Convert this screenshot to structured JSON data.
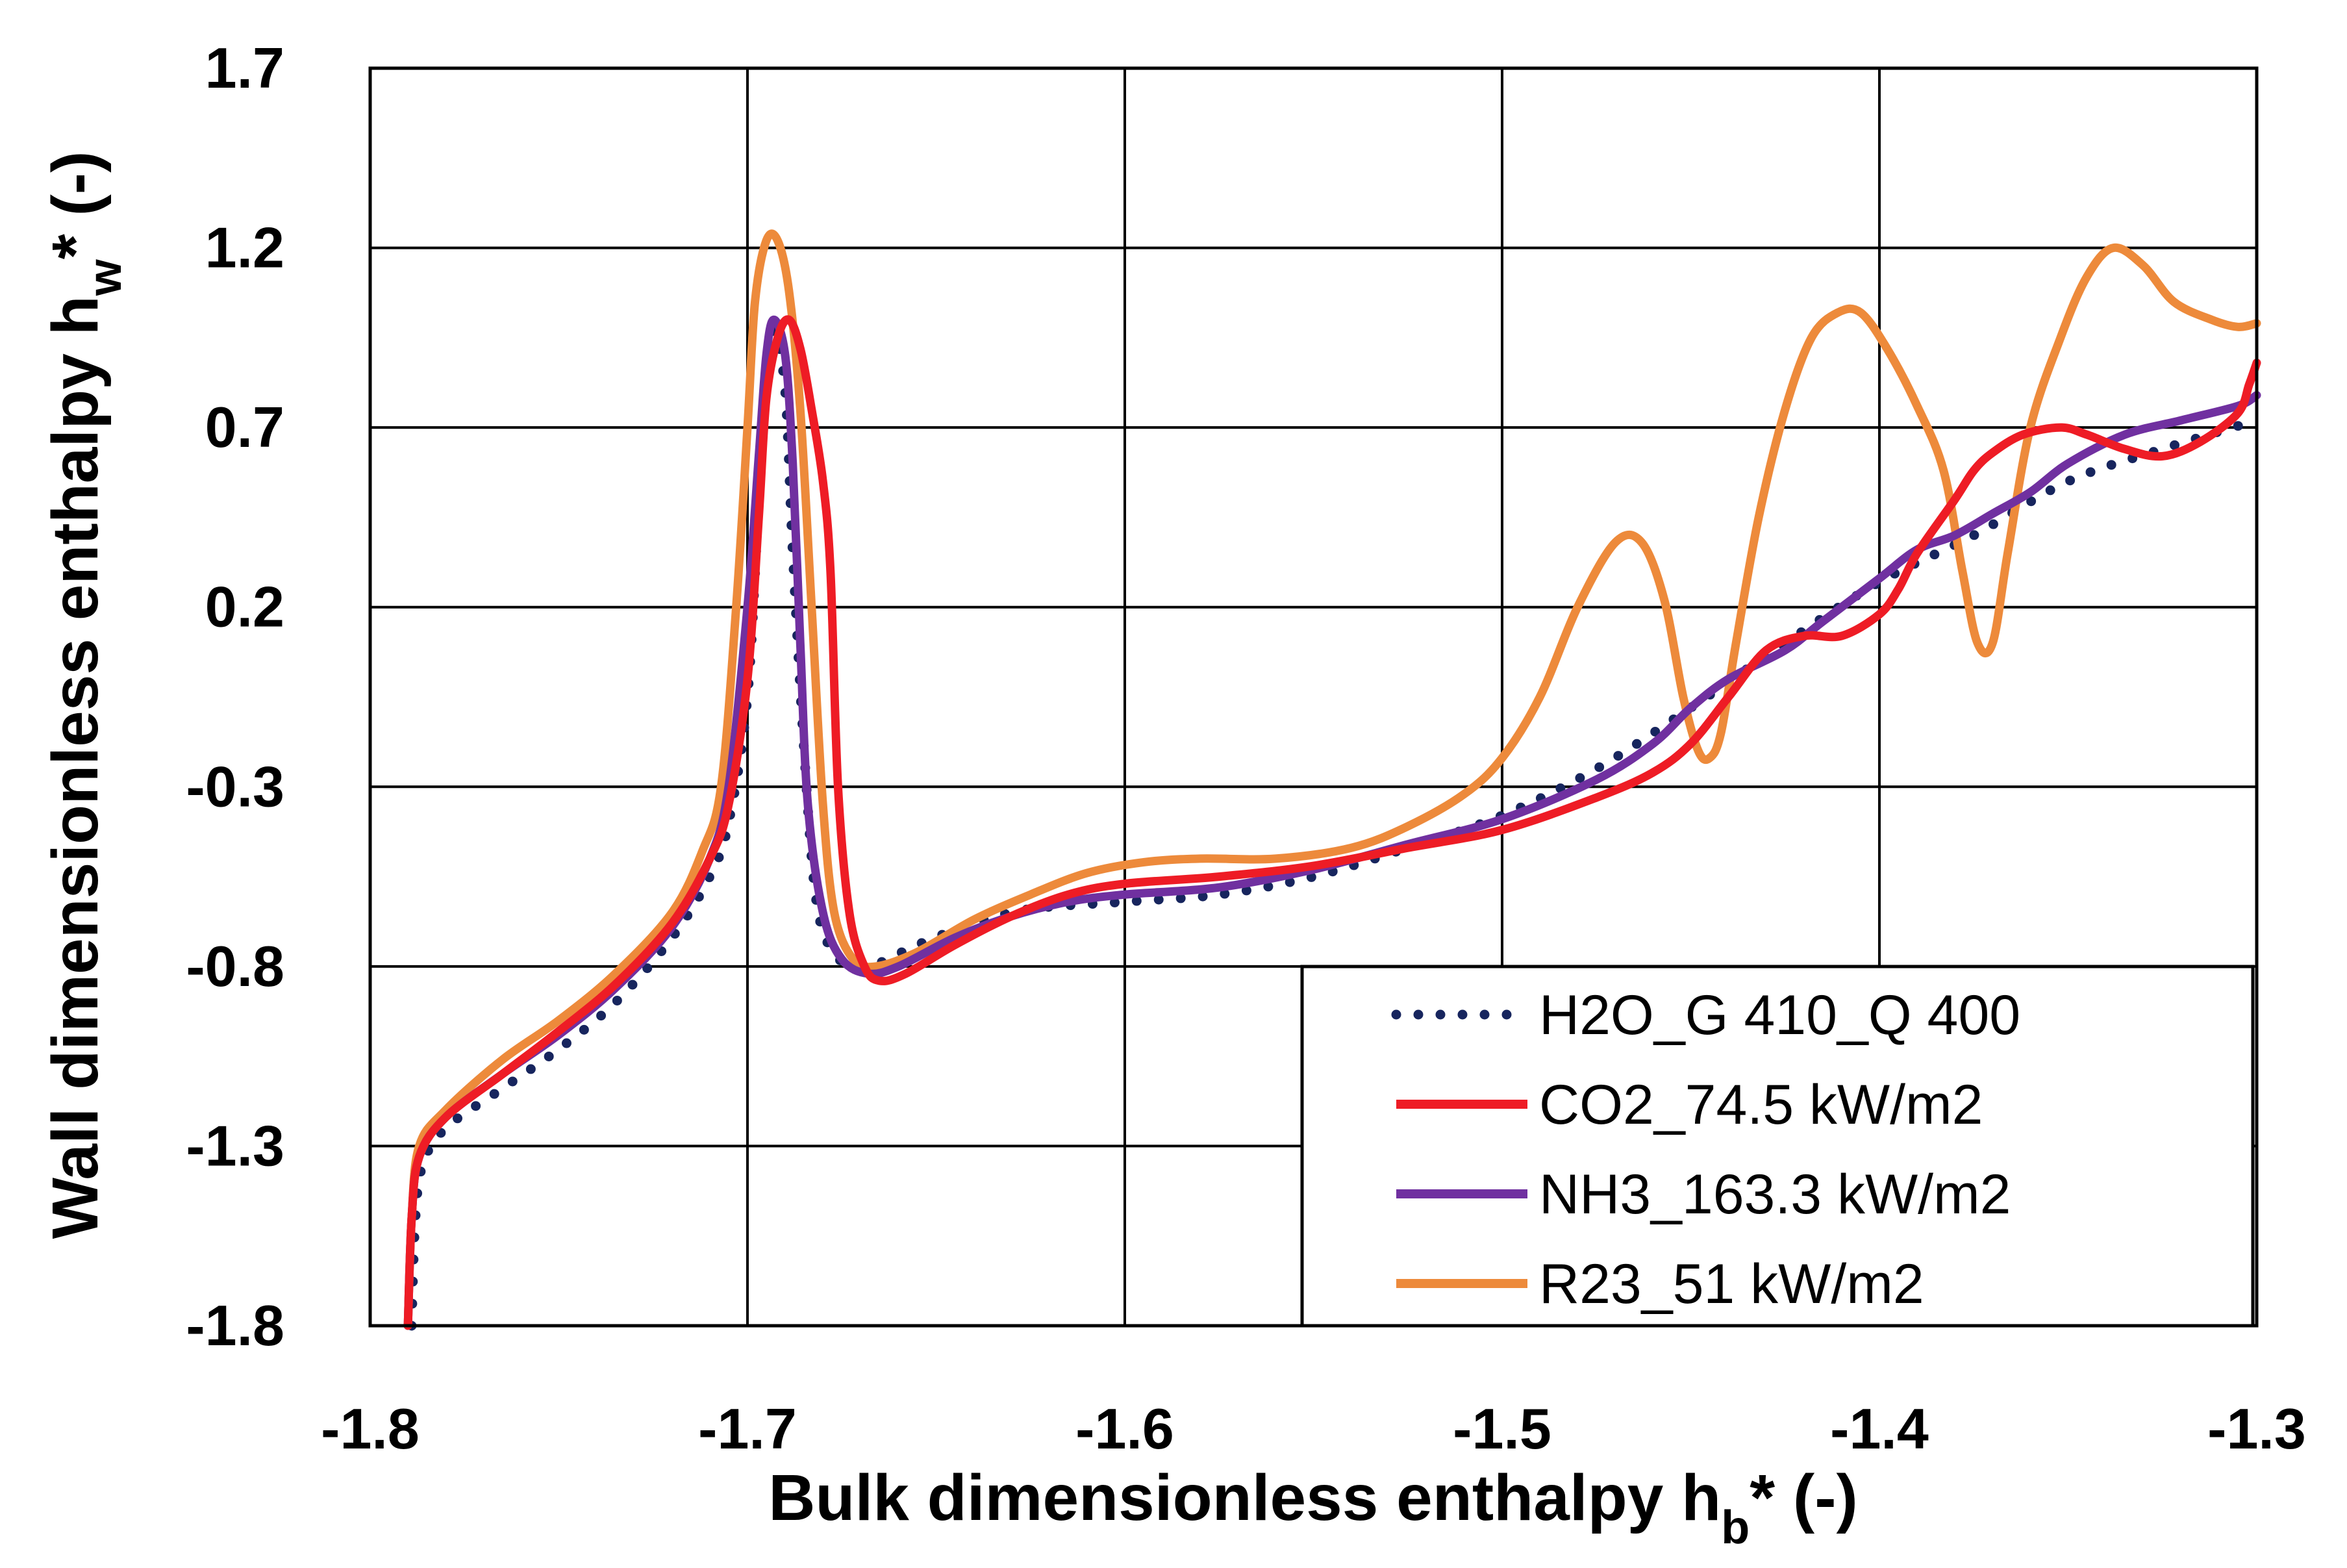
{
  "chart_data": {
    "type": "line",
    "title": "",
    "xlabel": "Bulk dimensionless enthalpy hb* (-)",
    "xlabel_parts": {
      "pre": "Bulk dimensionless enthalpy h",
      "sub": "b",
      "post": "* (-)"
    },
    "ylabel": "Wall dimensionless enthalpy hw* (-)",
    "ylabel_parts": {
      "pre": "Wall dimensionless enthalpy h",
      "sub": "w",
      "post": "* (-)"
    },
    "xlim": [
      -1.8,
      -1.3
    ],
    "ylim": [
      -1.8,
      1.7
    ],
    "xticks": [
      -1.8,
      -1.7,
      -1.6,
      -1.5,
      -1.4,
      -1.3
    ],
    "xtick_labels": [
      "-1.8",
      "-1.7",
      "-1.6",
      "-1.5",
      "-1.4",
      "-1.3"
    ],
    "yticks": [
      -1.8,
      -1.3,
      -0.8,
      -0.3,
      0.2,
      0.7,
      1.2,
      1.7
    ],
    "ytick_labels": [
      "-1.8",
      "-1.3",
      "-0.8",
      "-0.3",
      "0.2",
      "0.7",
      "1.2",
      "1.7"
    ],
    "grid": true,
    "legend_position": "bottom-right",
    "series": [
      {
        "name": "H2O_G 410_Q 400",
        "color": "#17255e",
        "style": "dotted",
        "points": [
          [
            -1.789,
            -1.8
          ],
          [
            -1.788,
            -1.5
          ],
          [
            -1.786,
            -1.35
          ],
          [
            -1.78,
            -1.25
          ],
          [
            -1.765,
            -1.14
          ],
          [
            -1.75,
            -1.03
          ],
          [
            -1.735,
            -0.9
          ],
          [
            -1.72,
            -0.72
          ],
          [
            -1.71,
            -0.55
          ],
          [
            -1.705,
            -0.4
          ],
          [
            -1.7,
            -0.05
          ],
          [
            -1.697,
            0.5
          ],
          [
            -1.695,
            0.85
          ],
          [
            -1.693,
            0.97
          ],
          [
            -1.69,
            0.8
          ],
          [
            -1.688,
            0.35
          ],
          [
            -1.685,
            -0.2
          ],
          [
            -1.682,
            -0.6
          ],
          [
            -1.678,
            -0.75
          ],
          [
            -1.672,
            -0.8
          ],
          [
            -1.665,
            -0.79
          ],
          [
            -1.655,
            -0.74
          ],
          [
            -1.64,
            -0.68
          ],
          [
            -1.625,
            -0.64
          ],
          [
            -1.6,
            -0.62
          ],
          [
            -1.575,
            -0.6
          ],
          [
            -1.55,
            -0.55
          ],
          [
            -1.525,
            -0.47
          ],
          [
            -1.5,
            -0.38
          ],
          [
            -1.475,
            -0.25
          ],
          [
            -1.45,
            -0.08
          ],
          [
            -1.425,
            0.1
          ],
          [
            -1.4,
            0.27
          ],
          [
            -1.375,
            0.4
          ],
          [
            -1.35,
            0.55
          ],
          [
            -1.325,
            0.64
          ],
          [
            -1.3,
            0.72
          ]
        ]
      },
      {
        "name": "CO2_74.5 kW/m2",
        "color": "#ee1c25",
        "style": "solid",
        "points": [
          [
            -1.79,
            -1.8
          ],
          [
            -1.789,
            -1.5
          ],
          [
            -1.787,
            -1.33
          ],
          [
            -1.78,
            -1.22
          ],
          [
            -1.765,
            -1.1
          ],
          [
            -1.75,
            -0.98
          ],
          [
            -1.735,
            -0.85
          ],
          [
            -1.72,
            -0.68
          ],
          [
            -1.71,
            -0.5
          ],
          [
            -1.705,
            -0.35
          ],
          [
            -1.7,
            0.0
          ],
          [
            -1.697,
            0.45
          ],
          [
            -1.695,
            0.78
          ],
          [
            -1.692,
            0.95
          ],
          [
            -1.689,
            1.0
          ],
          [
            -1.686,
            0.92
          ],
          [
            -1.683,
            0.75
          ],
          [
            -1.68,
            0.55
          ],
          [
            -1.678,
            0.3
          ],
          [
            -1.676,
            -0.3
          ],
          [
            -1.673,
            -0.65
          ],
          [
            -1.669,
            -0.8
          ],
          [
            -1.665,
            -0.84
          ],
          [
            -1.658,
            -0.82
          ],
          [
            -1.645,
            -0.74
          ],
          [
            -1.63,
            -0.66
          ],
          [
            -1.615,
            -0.6
          ],
          [
            -1.6,
            -0.57
          ],
          [
            -1.575,
            -0.55
          ],
          [
            -1.55,
            -0.52
          ],
          [
            -1.525,
            -0.47
          ],
          [
            -1.5,
            -0.42
          ],
          [
            -1.475,
            -0.33
          ],
          [
            -1.46,
            -0.26
          ],
          [
            -1.45,
            -0.18
          ],
          [
            -1.44,
            -0.05
          ],
          [
            -1.43,
            0.08
          ],
          [
            -1.42,
            0.12
          ],
          [
            -1.41,
            0.12
          ],
          [
            -1.4,
            0.18
          ],
          [
            -1.395,
            0.25
          ],
          [
            -1.39,
            0.35
          ],
          [
            -1.38,
            0.5
          ],
          [
            -1.375,
            0.58
          ],
          [
            -1.37,
            0.63
          ],
          [
            -1.362,
            0.68
          ],
          [
            -1.352,
            0.7
          ],
          [
            -1.345,
            0.68
          ],
          [
            -1.335,
            0.64
          ],
          [
            -1.325,
            0.62
          ],
          [
            -1.315,
            0.66
          ],
          [
            -1.305,
            0.74
          ],
          [
            -1.302,
            0.82
          ],
          [
            -1.3,
            0.88
          ]
        ]
      },
      {
        "name": "NH3_163.3 kW/m2",
        "color": "#7030a0",
        "style": "solid",
        "points": [
          [
            -1.79,
            -1.8
          ],
          [
            -1.789,
            -1.5
          ],
          [
            -1.787,
            -1.33
          ],
          [
            -1.78,
            -1.22
          ],
          [
            -1.765,
            -1.1
          ],
          [
            -1.75,
            -0.99
          ],
          [
            -1.735,
            -0.86
          ],
          [
            -1.72,
            -0.69
          ],
          [
            -1.71,
            -0.5
          ],
          [
            -1.705,
            -0.3
          ],
          [
            -1.7,
            0.2
          ],
          [
            -1.697,
            0.62
          ],
          [
            -1.695,
            0.9
          ],
          [
            -1.693,
            1.0
          ],
          [
            -1.69,
            0.9
          ],
          [
            -1.688,
            0.6
          ],
          [
            -1.686,
            0.1
          ],
          [
            -1.684,
            -0.35
          ],
          [
            -1.68,
            -0.65
          ],
          [
            -1.675,
            -0.78
          ],
          [
            -1.668,
            -0.82
          ],
          [
            -1.66,
            -0.8
          ],
          [
            -1.645,
            -0.72
          ],
          [
            -1.63,
            -0.66
          ],
          [
            -1.615,
            -0.62
          ],
          [
            -1.6,
            -0.6
          ],
          [
            -1.575,
            -0.58
          ],
          [
            -1.55,
            -0.53
          ],
          [
            -1.525,
            -0.46
          ],
          [
            -1.5,
            -0.39
          ],
          [
            -1.475,
            -0.28
          ],
          [
            -1.46,
            -0.18
          ],
          [
            -1.45,
            -0.08
          ],
          [
            -1.44,
            0.0
          ],
          [
            -1.425,
            0.08
          ],
          [
            -1.415,
            0.16
          ],
          [
            -1.4,
            0.28
          ],
          [
            -1.39,
            0.36
          ],
          [
            -1.38,
            0.4
          ],
          [
            -1.37,
            0.46
          ],
          [
            -1.36,
            0.52
          ],
          [
            -1.35,
            0.6
          ],
          [
            -1.335,
            0.68
          ],
          [
            -1.32,
            0.72
          ],
          [
            -1.305,
            0.76
          ],
          [
            -1.3,
            0.79
          ]
        ]
      },
      {
        "name": "R23_51 kW/m2",
        "color": "#ed8a3b",
        "style": "solid",
        "points": [
          [
            -1.79,
            -1.8
          ],
          [
            -1.789,
            -1.5
          ],
          [
            -1.787,
            -1.3
          ],
          [
            -1.78,
            -1.2
          ],
          [
            -1.765,
            -1.06
          ],
          [
            -1.75,
            -0.95
          ],
          [
            -1.735,
            -0.82
          ],
          [
            -1.72,
            -0.65
          ],
          [
            -1.712,
            -0.48
          ],
          [
            -1.707,
            -0.3
          ],
          [
            -1.703,
            0.2
          ],
          [
            -1.7,
            0.7
          ],
          [
            -1.698,
            1.05
          ],
          [
            -1.695,
            1.22
          ],
          [
            -1.692,
            1.22
          ],
          [
            -1.689,
            1.08
          ],
          [
            -1.686,
            0.75
          ],
          [
            -1.683,
            0.2
          ],
          [
            -1.68,
            -0.35
          ],
          [
            -1.677,
            -0.65
          ],
          [
            -1.672,
            -0.78
          ],
          [
            -1.666,
            -0.8
          ],
          [
            -1.655,
            -0.76
          ],
          [
            -1.64,
            -0.67
          ],
          [
            -1.625,
            -0.6
          ],
          [
            -1.61,
            -0.54
          ],
          [
            -1.595,
            -0.51
          ],
          [
            -1.58,
            -0.5
          ],
          [
            -1.56,
            -0.5
          ],
          [
            -1.54,
            -0.47
          ],
          [
            -1.525,
            -0.41
          ],
          [
            -1.51,
            -0.32
          ],
          [
            -1.5,
            -0.22
          ],
          [
            -1.49,
            -0.05
          ],
          [
            -1.48,
            0.2
          ],
          [
            -1.47,
            0.38
          ],
          [
            -1.463,
            0.38
          ],
          [
            -1.457,
            0.22
          ],
          [
            -1.452,
            -0.05
          ],
          [
            -1.448,
            -0.2
          ],
          [
            -1.445,
            -0.22
          ],
          [
            -1.442,
            -0.15
          ],
          [
            -1.438,
            0.1
          ],
          [
            -1.432,
            0.45
          ],
          [
            -1.425,
            0.75
          ],
          [
            -1.418,
            0.95
          ],
          [
            -1.411,
            1.02
          ],
          [
            -1.405,
            1.02
          ],
          [
            -1.398,
            0.92
          ],
          [
            -1.39,
            0.76
          ],
          [
            -1.383,
            0.58
          ],
          [
            -1.378,
            0.3
          ],
          [
            -1.374,
            0.1
          ],
          [
            -1.37,
            0.1
          ],
          [
            -1.366,
            0.35
          ],
          [
            -1.36,
            0.7
          ],
          [
            -1.352,
            0.95
          ],
          [
            -1.345,
            1.12
          ],
          [
            -1.338,
            1.2
          ],
          [
            -1.33,
            1.15
          ],
          [
            -1.322,
            1.05
          ],
          [
            -1.312,
            1.0
          ],
          [
            -1.305,
            0.98
          ],
          [
            -1.3,
            0.99
          ]
        ]
      }
    ]
  }
}
